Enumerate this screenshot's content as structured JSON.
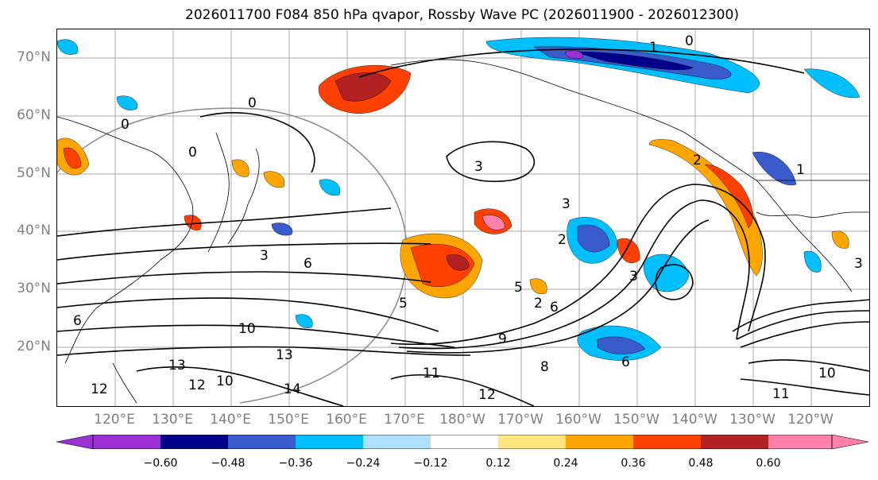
{
  "title": "2026011700 F084 850 hPa qvapor, Rossby Wave PC (2026011900 - 2026012300)",
  "map": {
    "lat_labels": [
      "70°N",
      "60°N",
      "50°N",
      "40°N",
      "30°N",
      "20°N"
    ],
    "lon_labels": [
      "120°E",
      "130°E",
      "140°E",
      "150°E",
      "160°E",
      "170°E",
      "180°W",
      "170°W",
      "160°W",
      "150°W",
      "140°W",
      "130°W",
      "120°W"
    ],
    "contour_labels": [
      "0",
      "1",
      "0",
      "0",
      "0",
      "3",
      "3",
      "3",
      "3",
      "5",
      "6",
      "6",
      "2",
      "2",
      "2",
      "6",
      "8",
      "9",
      "10",
      "10",
      "10",
      "11",
      "11",
      "12",
      "12",
      "13",
      "13",
      "14",
      "12",
      "1",
      "3",
      "6",
      "5"
    ]
  },
  "colorbar": {
    "colors": [
      "#9b30d6",
      "#00008b",
      "#3a5bcc",
      "#00bfff",
      "#b0e0ff",
      "#ffffff",
      "#ffe680",
      "#ffa500",
      "#ff4000",
      "#b22222",
      "#ff80a8"
    ],
    "tick_labels": [
      "−0.60",
      "−0.48",
      "−0.36",
      "−0.24",
      "−0.12",
      "0.12",
      "0.24",
      "0.36",
      "0.48",
      "0.60"
    ]
  }
}
